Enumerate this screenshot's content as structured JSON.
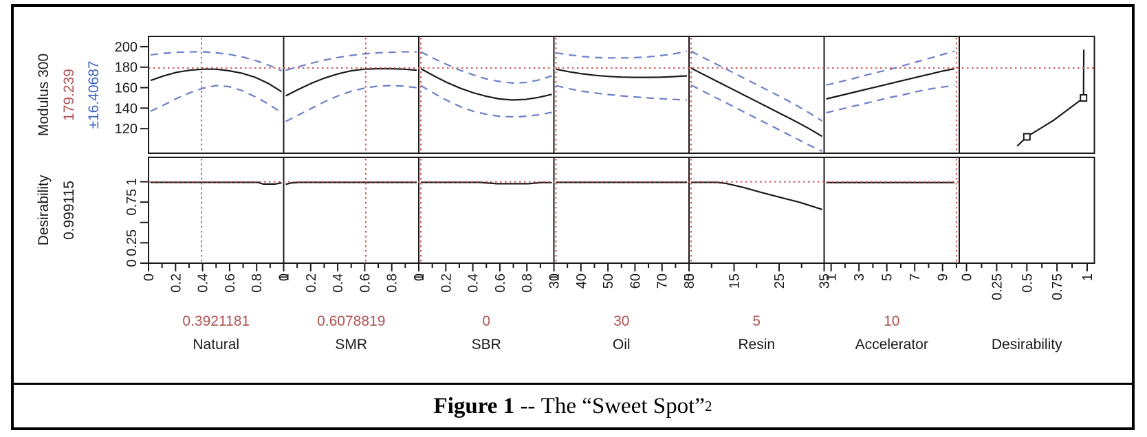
{
  "figure": {
    "caption": {
      "prefix": "Figure 1",
      "separator": " -- ",
      "title": "The “Sweet Spot”",
      "superscript": "2"
    }
  },
  "chart_data": {
    "type": "line",
    "subtype": "prediction-profiler",
    "colors": {
      "mean": "#1a1a1a",
      "band": "#6b7ec9",
      "crosshair": "#cc5555",
      "value_text": "#b05252",
      "ci_text": "#3a66c0",
      "axis": "#1a1a1a"
    },
    "response": {
      "label": "Modulus 300",
      "value": "179.239",
      "ci": "±16.40687",
      "target": 179.239,
      "ylim": [
        96,
        210
      ],
      "yticks": [
        200,
        180,
        160,
        140,
        120
      ],
      "ytick_labels": [
        "200",
        "180",
        "160",
        "140",
        "120"
      ]
    },
    "desirability": {
      "label": "Desirability",
      "value": "0.999115",
      "target": 0.999115,
      "ylim": [
        0,
        1.3
      ],
      "yticks": [
        1,
        0.75,
        0.5,
        0.25,
        0
      ],
      "ytick_labels": [
        "1",
        "0.75",
        "",
        "0.25",
        "0"
      ]
    },
    "factors": [
      {
        "name": "Natural",
        "value_label": "0.3921181",
        "value": 0.3921181,
        "xlim": [
          0,
          1
        ],
        "xticks": [
          0,
          0.2,
          0.4,
          0.6,
          0.8,
          1
        ],
        "xtick_labels": [
          "0",
          "0.2",
          "0.4",
          "0.6",
          "0.8",
          "1"
        ],
        "minor_ticks": [
          0.1,
          0.3,
          0.5,
          0.7,
          0.9
        ],
        "x": [
          0,
          0.1,
          0.2,
          0.3,
          0.4,
          0.5,
          0.6,
          0.7,
          0.8,
          0.9,
          1
        ],
        "mean": [
          167,
          171.5,
          175,
          177,
          178,
          178,
          176.5,
          174,
          170,
          164,
          156
        ],
        "upper": [
          192,
          193.5,
          194.5,
          195,
          195,
          194,
          192.5,
          190,
          186.5,
          182,
          176.5
        ],
        "lower": [
          137,
          143,
          149.5,
          155,
          159.5,
          162,
          161,
          157,
          151,
          144,
          135.5
        ],
        "des_x": [
          0,
          0.82,
          0.86,
          0.95,
          1
        ],
        "des_y": [
          0.993,
          0.993,
          0.972,
          0.972,
          0.988
        ]
      },
      {
        "name": "SMR",
        "value_label": "0.6078819",
        "value": 0.6078819,
        "xlim": [
          0,
          1
        ],
        "xticks": [
          0,
          0.2,
          0.4,
          0.6,
          0.8,
          1
        ],
        "xtick_labels": [
          "0",
          "0.2",
          "0.4",
          "0.6",
          "0.8",
          "1"
        ],
        "minor_ticks": [
          0.1,
          0.3,
          0.5,
          0.7,
          0.9
        ],
        "x": [
          0,
          0.1,
          0.2,
          0.3,
          0.4,
          0.5,
          0.6,
          0.7,
          0.8,
          0.9,
          1
        ],
        "mean": [
          152,
          158.5,
          164.5,
          169.5,
          173.5,
          176.5,
          178,
          178.5,
          178.5,
          178,
          177
        ],
        "upper": [
          177,
          180.5,
          184,
          187,
          189.5,
          191.5,
          193,
          194,
          194.5,
          195,
          195
        ],
        "lower": [
          127,
          133.5,
          140,
          146.5,
          152,
          156.5,
          159.5,
          161.5,
          162,
          161.5,
          160
        ],
        "des_x": [
          0,
          0.04,
          0.1,
          1
        ],
        "des_y": [
          0.968,
          0.985,
          0.993,
          0.993
        ]
      },
      {
        "name": "SBR",
        "value_label": "0",
        "value": 0,
        "xlim": [
          0,
          1
        ],
        "xticks": [
          0,
          0.2,
          0.4,
          0.6,
          0.8,
          1
        ],
        "xtick_labels": [
          "0",
          "0.2",
          "0.4",
          "0.6",
          "0.8",
          "1"
        ],
        "minor_ticks": [
          0.1,
          0.3,
          0.5,
          0.7,
          0.9
        ],
        "x": [
          0,
          0.1,
          0.2,
          0.3,
          0.4,
          0.5,
          0.6,
          0.7,
          0.8,
          0.9,
          1
        ],
        "mean": [
          178.5,
          171.5,
          165,
          159.5,
          155,
          151.5,
          149,
          148,
          148.5,
          150.5,
          153.5
        ],
        "upper": [
          195,
          188.5,
          182.5,
          177,
          172.5,
          168.5,
          166,
          164.5,
          165,
          167.5,
          171.5
        ],
        "lower": [
          162,
          154.5,
          147.5,
          141.5,
          137,
          134,
          132,
          131.5,
          132,
          133.5,
          136
        ],
        "des_x": [
          0,
          0.45,
          0.58,
          0.82,
          0.92,
          1
        ],
        "des_y": [
          0.993,
          0.993,
          0.976,
          0.976,
          0.99,
          0.99
        ]
      },
      {
        "name": "Oil",
        "value_label": "30",
        "value": 30,
        "xlim": [
          30,
          80
        ],
        "xticks": [
          30,
          40,
          50,
          60,
          70,
          80
        ],
        "xtick_labels": [
          "30",
          "40",
          "50",
          "60",
          "70",
          "80"
        ],
        "minor_ticks": [
          35,
          45,
          55,
          65,
          75
        ],
        "x": [
          30,
          35,
          40,
          45,
          50,
          55,
          60,
          65,
          70,
          75,
          80
        ],
        "mean": [
          178,
          175.5,
          173.5,
          172,
          171,
          170.3,
          170,
          170,
          170.2,
          170.8,
          171.5
        ],
        "upper": [
          194,
          192,
          190.5,
          189.5,
          189,
          189,
          189.3,
          190,
          191.3,
          193,
          195.5
        ],
        "lower": [
          162,
          159,
          156.5,
          154.8,
          153.3,
          152,
          151,
          150,
          149.2,
          148.5,
          148
        ],
        "des_x": [
          30,
          80
        ],
        "des_y": [
          0.993,
          0.993
        ]
      },
      {
        "name": "Resin",
        "value_label": "5",
        "value": 5,
        "xlim": [
          5,
          35
        ],
        "xticks": [
          5,
          15,
          25,
          35
        ],
        "xtick_labels": [
          "5",
          "15",
          "25",
          "35"
        ],
        "minor_ticks": [
          10,
          20,
          30
        ],
        "x": [
          5,
          8,
          11,
          14,
          17,
          20,
          23,
          26,
          29,
          32,
          35
        ],
        "mean": [
          179,
          172.5,
          166,
          159.5,
          153,
          146.5,
          140,
          133.5,
          127,
          120,
          112.5
        ],
        "upper": [
          195.5,
          189,
          182.5,
          176,
          169.5,
          163,
          156.5,
          150,
          143,
          135.5,
          127.5
        ],
        "lower": [
          162.5,
          156,
          149.5,
          143,
          136.5,
          130,
          123.5,
          117,
          110.5,
          104,
          98
        ],
        "des_x": [
          5,
          11,
          13,
          17,
          21,
          26,
          30,
          35
        ],
        "des_y": [
          0.993,
          0.993,
          0.98,
          0.93,
          0.87,
          0.8,
          0.745,
          0.66
        ]
      },
      {
        "name": "Accelerator",
        "value_label": "10",
        "value": 10,
        "xlim": [
          0.5,
          10.2
        ],
        "xticks": [
          1,
          3,
          5,
          7,
          9
        ],
        "xtick_labels": [
          "1",
          "3",
          "5",
          "7",
          "9"
        ],
        "minor_ticks": [
          2,
          4,
          6,
          8,
          10
        ],
        "x": [
          0.5,
          1.45,
          2.4,
          3.35,
          4.3,
          5.25,
          6.2,
          7.15,
          8.1,
          9.05,
          10
        ],
        "mean": [
          149,
          152,
          155,
          158,
          161,
          164,
          167,
          170,
          173,
          176,
          178.5
        ],
        "upper": [
          162.5,
          165.5,
          168.5,
          172,
          175,
          178,
          181.5,
          185,
          188.5,
          192,
          195.5
        ],
        "lower": [
          135.5,
          138.5,
          141.5,
          144.5,
          147.5,
          150.5,
          153,
          156,
          158.5,
          160.5,
          162
        ],
        "des_x": [
          0.5,
          10
        ],
        "des_y": [
          0.99,
          0.99
        ]
      }
    ],
    "desirability_panel": {
      "name": "Desirability",
      "xlim": [
        -0.06,
        1.06
      ],
      "xticks": [
        0,
        0.25,
        0.5,
        0.75,
        1
      ],
      "xtick_labels": [
        "0",
        "0.25",
        "0.5",
        "0.75",
        "1"
      ],
      "minor_ticks": [
        0.125,
        0.375,
        0.625,
        0.875
      ],
      "trace_x": [
        0.42,
        0.5,
        0.72,
        0.97,
        0.972
      ],
      "trace_y": [
        103,
        112,
        128,
        150,
        197
      ],
      "markers": [
        [
          0.5,
          112
        ],
        [
          0.97,
          150
        ]
      ]
    }
  }
}
